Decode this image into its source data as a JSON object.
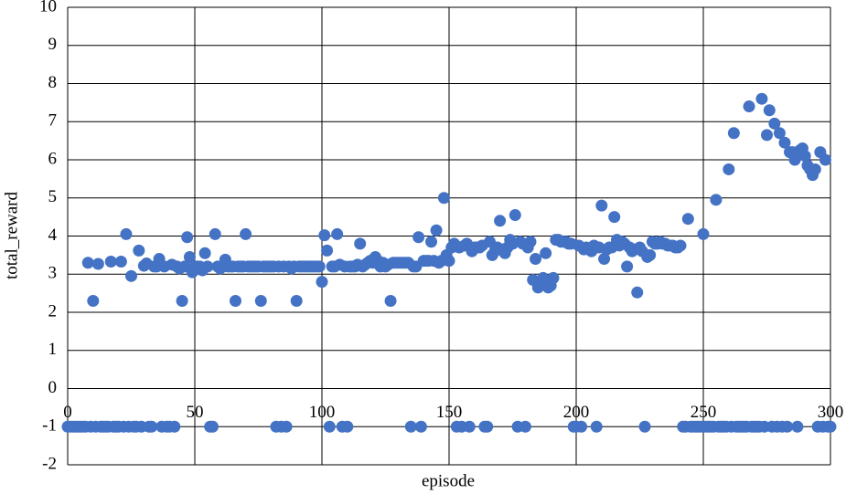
{
  "chart_data": {
    "type": "scatter",
    "x_label": "episode",
    "y_label": "total_reward",
    "color": "#4472c4",
    "grid": true,
    "xlim": [
      0,
      300
    ],
    "xticks": [
      0,
      50,
      100,
      150,
      200,
      250,
      300
    ],
    "ylim": [
      -2,
      10
    ],
    "yticks": [
      -2,
      -1,
      0,
      1,
      2,
      3,
      4,
      5,
      6,
      7,
      8,
      9,
      10
    ],
    "x": [
      0,
      1,
      2,
      3,
      4,
      5,
      6,
      7,
      8,
      9,
      10,
      11,
      12,
      13,
      14,
      15,
      16,
      17,
      18,
      19,
      20,
      21,
      22,
      23,
      24,
      25,
      26,
      27,
      28,
      29,
      30,
      31,
      32,
      33,
      34,
      35,
      36,
      37,
      38,
      39,
      40,
      41,
      42,
      43,
      44,
      45,
      46,
      47,
      48,
      49,
      50,
      51,
      52,
      53,
      54,
      55,
      56,
      57,
      58,
      59,
      60,
      61,
      62,
      63,
      64,
      65,
      66,
      67,
      68,
      69,
      70,
      71,
      72,
      73,
      74,
      75,
      76,
      77,
      78,
      79,
      80,
      81,
      82,
      83,
      84,
      85,
      86,
      87,
      88,
      89,
      90,
      91,
      92,
      93,
      94,
      95,
      96,
      97,
      98,
      99,
      100,
      101,
      102,
      103,
      104,
      105,
      106,
      107,
      108,
      109,
      110,
      111,
      112,
      113,
      114,
      115,
      116,
      117,
      118,
      119,
      120,
      121,
      122,
      123,
      124,
      125,
      126,
      127,
      128,
      129,
      130,
      131,
      132,
      133,
      134,
      135,
      136,
      137,
      138,
      139,
      140,
      141,
      142,
      143,
      144,
      145,
      146,
      147,
      148,
      149,
      150,
      151,
      152,
      153,
      154,
      155,
      156,
      157,
      158,
      159,
      160,
      161,
      162,
      163,
      164,
      165,
      166,
      167,
      168,
      169,
      170,
      171,
      172,
      173,
      174,
      175,
      176,
      177,
      178,
      179,
      180,
      181,
      182,
      183,
      184,
      185,
      186,
      187,
      188,
      189,
      190,
      191,
      192,
      193,
      194,
      195,
      196,
      197,
      198,
      199,
      200,
      201,
      202,
      203,
      204,
      205,
      206,
      207,
      208,
      209,
      210,
      211,
      212,
      213,
      214,
      215,
      216,
      217,
      218,
      219,
      220,
      221,
      222,
      223,
      224,
      225,
      226,
      227,
      228,
      229,
      230,
      231,
      232,
      233,
      234,
      235,
      236,
      237,
      238,
      239,
      240,
      241,
      242,
      243,
      244,
      245,
      246,
      247,
      248,
      249,
      250,
      251,
      252,
      253,
      254,
      255,
      256,
      257,
      258,
      259,
      260,
      261,
      262,
      263,
      264,
      265,
      266,
      267,
      268,
      269,
      270,
      271,
      272,
      273,
      274,
      275,
      276,
      277,
      278,
      279,
      280,
      281,
      282,
      283,
      284,
      285,
      286,
      287,
      288,
      289,
      290,
      291,
      292,
      293,
      294,
      295,
      296,
      297,
      298,
      299,
      300
    ],
    "values": [
      -1,
      -1,
      -1,
      -1,
      -1,
      -1,
      -1,
      -1,
      3.3,
      -1,
      2.3,
      -1,
      3.27,
      -1,
      -1,
      -1,
      -1,
      3.33,
      -1,
      -1,
      -1,
      3.33,
      -1,
      4.05,
      -1,
      2.95,
      -1,
      -1,
      3.62,
      -1,
      3.22,
      3.28,
      -1,
      -1,
      3.2,
      3.2,
      3.4,
      -1,
      3.2,
      -1,
      -1,
      3.25,
      -1,
      3.2,
      3.15,
      2.3,
      3.2,
      3.97,
      3.45,
      3.05,
      3.2,
      3.2,
      3.2,
      3.1,
      3.55,
      3.2,
      -1,
      -1,
      4.05,
      3.2,
      3.15,
      3.2,
      3.38,
      3.2,
      3.2,
      3.2,
      2.3,
      3.2,
      3.2,
      3.2,
      4.05,
      3.2,
      3.2,
      3.2,
      3.2,
      3.2,
      2.3,
      3.2,
      3.2,
      3.2,
      3.2,
      3.2,
      -1,
      3.2,
      -1,
      3.2,
      -1,
      3.2,
      3.15,
      3.2,
      2.3,
      3.2,
      3.2,
      3.2,
      3.2,
      3.2,
      3.2,
      3.2,
      3.2,
      3.2,
      2.8,
      4.02,
      3.62,
      -1,
      3.2,
      3.2,
      4.05,
      3.25,
      -1,
      3.2,
      -1,
      3.2,
      3.2,
      3.2,
      3.25,
      3.8,
      3.2,
      3.25,
      3.3,
      3.35,
      3.3,
      3.45,
      3.35,
      3.2,
      3.3,
      3.2,
      3.25,
      2.3,
      3.3,
      3.3,
      3.3,
      3.3,
      3.3,
      3.3,
      3.3,
      -1,
      3.2,
      3.2,
      3.97,
      -1,
      3.35,
      3.35,
      3.35,
      3.85,
      3.35,
      4.15,
      3.3,
      3.35,
      5.0,
      3.5,
      3.35,
      3.7,
      3.8,
      -1,
      3.7,
      -1,
      3.75,
      3.8,
      -1,
      3.6,
      3.7,
      3.7,
      3.7,
      3.75,
      -1,
      -1,
      3.85,
      3.5,
      3.6,
      3.7,
      4.4,
      3.65,
      3.55,
      3.7,
      3.9,
      3.8,
      4.55,
      -1,
      3.85,
      3.8,
      -1,
      3.7,
      3.85,
      2.85,
      3.4,
      2.65,
      2.8,
      2.9,
      3.55,
      2.65,
      2.7,
      2.9,
      3.9,
      3.9,
      3.85,
      3.85,
      3.85,
      3.8,
      3.8,
      -1,
      -1,
      3.75,
      -1,
      3.65,
      3.7,
      3.65,
      3.6,
      3.75,
      -1,
      3.7,
      4.8,
      3.4,
      3.65,
      3.7,
      3.7,
      4.5,
      3.9,
      3.75,
      3.85,
      3.8,
      3.2,
      3.7,
      3.6,
      3.65,
      2.52,
      3.7,
      3.6,
      -1,
      3.45,
      3.5,
      3.85,
      3.8,
      3.8,
      3.85,
      3.8,
      3.8,
      3.75,
      3.75,
      3.75,
      3.7,
      3.7,
      3.75,
      -1,
      -1,
      4.45,
      -1,
      -1,
      -1,
      -1,
      -1,
      4.05,
      -1,
      -1,
      -1,
      -1,
      4.95,
      -1,
      -1,
      -1,
      -1,
      5.75,
      -1,
      6.7,
      -1,
      -1,
      -1,
      -1,
      -1,
      7.4,
      -1,
      -1,
      -1,
      -1,
      7.6,
      -1,
      6.65,
      7.3,
      -1,
      6.95,
      -1,
      6.7,
      -1,
      6.45,
      -1,
      6.2,
      6.2,
      6.0,
      -1,
      6.25,
      6.3,
      6.1,
      5.85,
      5.75,
      5.6,
      5.75,
      -1,
      6.2,
      -1,
      6.0,
      -1,
      -1
    ]
  }
}
